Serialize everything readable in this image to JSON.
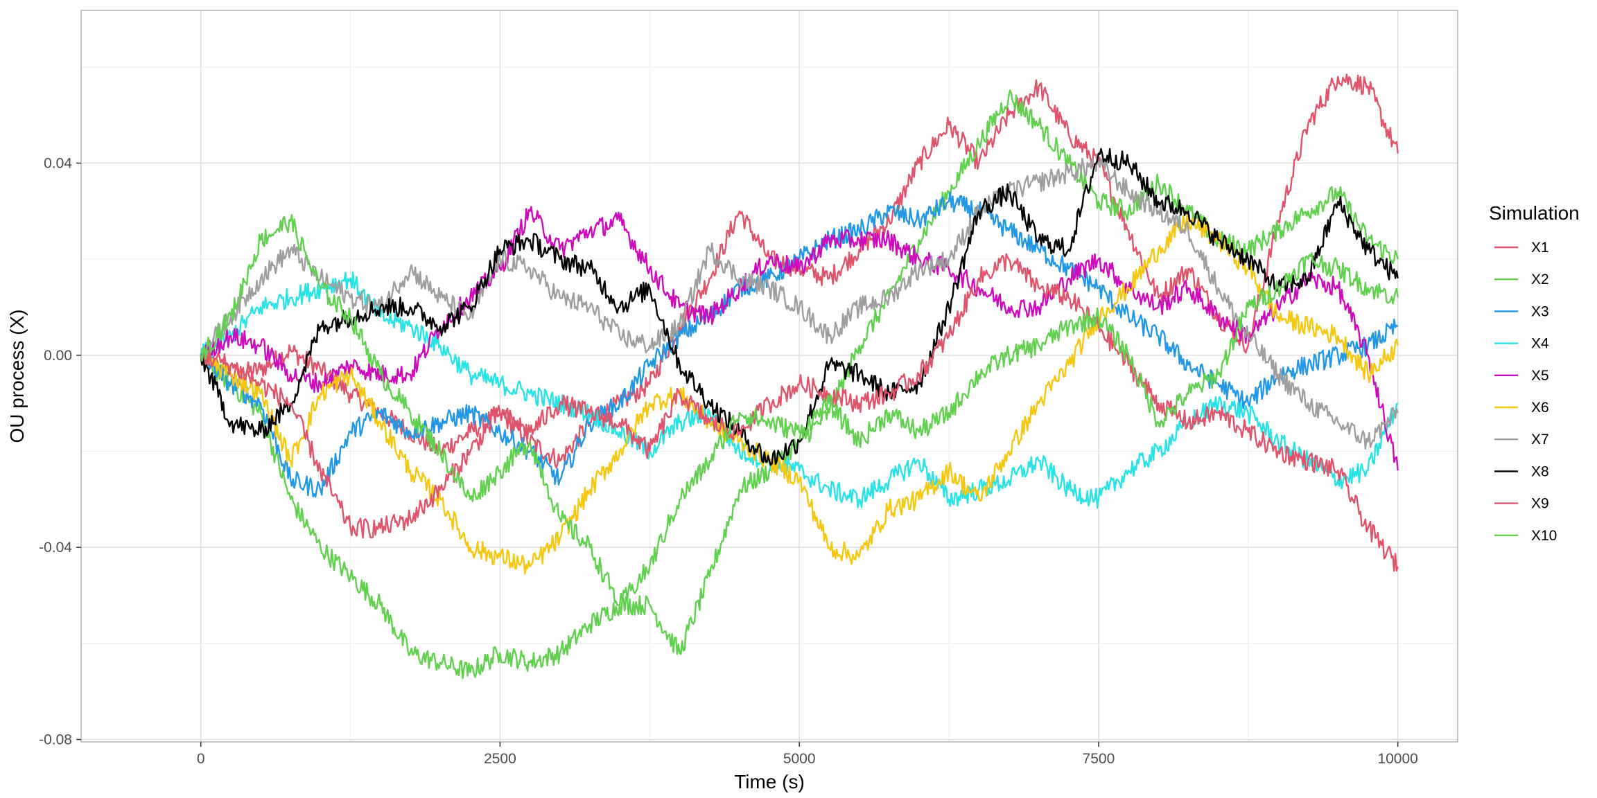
{
  "chart_data": {
    "type": "line",
    "xlabel": "Time (s)",
    "ylabel": "OU process (X)",
    "xlim": [
      -1000,
      10500
    ],
    "ylim": [
      -0.0805,
      0.0718
    ],
    "x_ticks": [
      0,
      2500,
      5000,
      7500,
      10000
    ],
    "x_tick_labels": [
      "0",
      "2500",
      "5000",
      "7500",
      "10000"
    ],
    "y_ticks": [
      -0.08,
      -0.04,
      0.0,
      0.04
    ],
    "y_tick_labels": [
      "-0.08",
      "-0.04",
      "0.00",
      "0.04"
    ],
    "grid": true,
    "legend": {
      "title": "Simulation",
      "position": "right"
    },
    "x": [
      0,
      250,
      500,
      750,
      1000,
      1250,
      1500,
      1750,
      2000,
      2250,
      2500,
      2750,
      3000,
      3250,
      3500,
      3750,
      4000,
      4250,
      4500,
      4750,
      5000,
      5250,
      5500,
      5750,
      6000,
      6250,
      6500,
      6750,
      7000,
      7250,
      7500,
      7750,
      8000,
      8250,
      8500,
      8750,
      9000,
      9250,
      9500,
      9750,
      10000
    ],
    "series": [
      {
        "name": "X1",
        "color": "#DF536B",
        "values": [
          0,
          -0.004,
          -0.003,
          0.001,
          -0.003,
          -0.008,
          -0.012,
          -0.016,
          -0.02,
          -0.016,
          -0.012,
          -0.018,
          -0.022,
          -0.014,
          -0.01,
          -0.006,
          0.006,
          0.016,
          0.03,
          0.02,
          0.018,
          0.016,
          0.022,
          0.028,
          0.04,
          0.048,
          0.04,
          0.05,
          0.056,
          0.046,
          0.04,
          0.026,
          0.012,
          0.018,
          0.008,
          0.002,
          0.028,
          0.048,
          0.058,
          0.056,
          0.042
        ]
      },
      {
        "name": "X2",
        "color": "#61D04F",
        "values": [
          0,
          -0.006,
          -0.012,
          -0.03,
          -0.04,
          -0.046,
          -0.052,
          -0.062,
          -0.064,
          -0.066,
          -0.062,
          -0.064,
          -0.062,
          -0.056,
          -0.052,
          -0.052,
          -0.062,
          -0.046,
          -0.028,
          -0.024,
          -0.018,
          -0.012,
          0.002,
          0.012,
          0.024,
          0.034,
          0.044,
          0.054,
          0.048,
          0.04,
          0.032,
          0.03,
          0.036,
          0.03,
          0.024,
          0.022,
          0.026,
          0.03,
          0.034,
          0.024,
          0.02
        ]
      },
      {
        "name": "X3",
        "color": "#2297E6",
        "values": [
          0,
          -0.006,
          -0.01,
          -0.026,
          -0.028,
          -0.016,
          -0.012,
          -0.016,
          -0.014,
          -0.012,
          -0.016,
          -0.02,
          -0.026,
          -0.014,
          -0.01,
          -0.002,
          0.004,
          0.008,
          0.014,
          0.016,
          0.02,
          0.024,
          0.026,
          0.03,
          0.028,
          0.032,
          0.03,
          0.026,
          0.022,
          0.018,
          0.014,
          0.008,
          0.004,
          -0.002,
          -0.006,
          -0.01,
          -0.004,
          -0.002,
          0.0,
          0.002,
          0.006
        ]
      },
      {
        "name": "X4",
        "color": "#28E2E5",
        "values": [
          0,
          0.004,
          0.01,
          0.012,
          0.014,
          0.016,
          0.008,
          0.006,
          0.002,
          -0.004,
          -0.006,
          -0.008,
          -0.01,
          -0.012,
          -0.016,
          -0.02,
          -0.014,
          -0.012,
          -0.02,
          -0.022,
          -0.024,
          -0.028,
          -0.03,
          -0.026,
          -0.022,
          -0.03,
          -0.028,
          -0.026,
          -0.022,
          -0.028,
          -0.03,
          -0.024,
          -0.02,
          -0.014,
          -0.01,
          -0.012,
          -0.018,
          -0.022,
          -0.026,
          -0.024,
          -0.01
        ]
      },
      {
        "name": "X5",
        "color": "#CD0BBC",
        "values": [
          0,
          0.004,
          0.002,
          -0.004,
          -0.006,
          -0.002,
          -0.004,
          -0.004,
          0.006,
          0.012,
          0.018,
          0.03,
          0.022,
          0.026,
          0.028,
          0.018,
          0.01,
          0.008,
          0.014,
          0.02,
          0.018,
          0.024,
          0.024,
          0.024,
          0.02,
          0.018,
          0.014,
          0.01,
          0.01,
          0.016,
          0.02,
          0.014,
          0.01,
          0.014,
          0.008,
          0.004,
          0.01,
          0.016,
          0.014,
          0.0,
          -0.024
        ]
      },
      {
        "name": "X6",
        "color": "#F5C710",
        "values": [
          0,
          -0.004,
          -0.008,
          -0.022,
          -0.008,
          -0.004,
          -0.014,
          -0.024,
          -0.03,
          -0.04,
          -0.042,
          -0.044,
          -0.038,
          -0.028,
          -0.02,
          -0.01,
          -0.008,
          -0.014,
          -0.018,
          -0.022,
          -0.026,
          -0.04,
          -0.042,
          -0.032,
          -0.03,
          -0.024,
          -0.03,
          -0.02,
          -0.01,
          -0.002,
          0.008,
          0.014,
          0.022,
          0.028,
          0.024,
          0.018,
          0.008,
          0.006,
          0.004,
          -0.004,
          0.002
        ]
      },
      {
        "name": "X7",
        "color": "#9E9E9E",
        "values": [
          0,
          0.008,
          0.016,
          0.022,
          0.016,
          0.012,
          0.01,
          0.018,
          0.012,
          0.008,
          0.02,
          0.018,
          0.012,
          0.01,
          0.004,
          0.002,
          0.006,
          0.022,
          0.016,
          0.014,
          0.01,
          0.004,
          0.01,
          0.012,
          0.018,
          0.02,
          0.03,
          0.034,
          0.036,
          0.038,
          0.04,
          0.034,
          0.03,
          0.026,
          0.014,
          0.004,
          -0.004,
          -0.01,
          -0.014,
          -0.018,
          -0.012
        ]
      },
      {
        "name": "X8",
        "color": "#000000",
        "values": [
          0,
          -0.014,
          -0.016,
          -0.01,
          0.006,
          0.008,
          0.01,
          0.01,
          0.006,
          0.01,
          0.022,
          0.024,
          0.02,
          0.018,
          0.01,
          0.014,
          -0.002,
          -0.01,
          -0.016,
          -0.022,
          -0.018,
          -0.002,
          -0.004,
          -0.008,
          -0.006,
          0.01,
          0.03,
          0.034,
          0.024,
          0.022,
          0.042,
          0.04,
          0.032,
          0.03,
          0.024,
          0.02,
          0.014,
          0.016,
          0.032,
          0.022,
          0.016
        ]
      },
      {
        "name": "X9",
        "color": "#DF536B",
        "values": [
          0,
          -0.002,
          -0.006,
          -0.01,
          -0.024,
          -0.036,
          -0.036,
          -0.034,
          -0.028,
          -0.02,
          -0.012,
          -0.016,
          -0.01,
          -0.012,
          -0.014,
          -0.02,
          -0.008,
          -0.014,
          -0.016,
          -0.01,
          -0.006,
          -0.008,
          -0.01,
          -0.008,
          -0.004,
          0.004,
          0.016,
          0.02,
          0.014,
          0.012,
          0.006,
          -0.002,
          -0.01,
          -0.014,
          -0.012,
          -0.016,
          -0.02,
          -0.022,
          -0.024,
          -0.036,
          -0.044
        ]
      },
      {
        "name": "X10",
        "color": "#61D04F",
        "values": [
          0,
          0.008,
          0.024,
          0.028,
          0.014,
          0.008,
          -0.004,
          -0.012,
          -0.02,
          -0.03,
          -0.024,
          -0.018,
          -0.034,
          -0.04,
          -0.052,
          -0.044,
          -0.03,
          -0.022,
          -0.012,
          -0.014,
          -0.016,
          -0.01,
          -0.018,
          -0.012,
          -0.016,
          -0.012,
          -0.004,
          0.0,
          0.002,
          0.006,
          0.008,
          0.0,
          -0.014,
          -0.008,
          -0.004,
          0.01,
          0.014,
          0.02,
          0.018,
          0.014,
          0.012
        ]
      }
    ]
  }
}
